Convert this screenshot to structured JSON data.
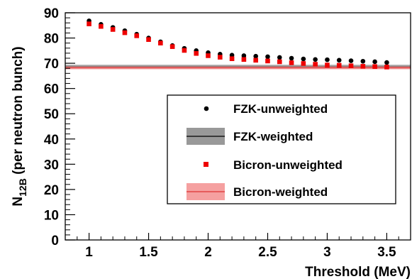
{
  "chart_data": {
    "type": "scatter",
    "xlabel": "Threshold  (MeV)",
    "ylabel": {
      "main": "N",
      "subscript": "12B",
      "suffix": " (per neutron bunch)"
    },
    "xlim": [
      0.8,
      3.7
    ],
    "ylim": [
      0,
      90
    ],
    "x_ticks": [
      "1",
      "1.5",
      "2",
      "2.5",
      "3",
      "3.5"
    ],
    "y_ticks": [
      "0",
      "10",
      "20",
      "30",
      "40",
      "50",
      "60",
      "70",
      "80",
      "90"
    ],
    "grid": false,
    "legend_position": "center-right",
    "series": [
      {
        "name": "FZK-unweighted",
        "kind": "points",
        "marker": "circle",
        "color": "#000000",
        "x": [
          1.0,
          1.1,
          1.2,
          1.3,
          1.4,
          1.5,
          1.6,
          1.7,
          1.8,
          1.9,
          2.0,
          2.1,
          2.2,
          2.3,
          2.4,
          2.5,
          2.6,
          2.7,
          2.8,
          2.9,
          3.0,
          3.1,
          3.2,
          3.3,
          3.4,
          3.5
        ],
        "y": [
          86.8,
          85.4,
          84.2,
          82.9,
          81.5,
          80.0,
          78.5,
          77.0,
          75.9,
          75.0,
          74.2,
          73.6,
          73.2,
          73.0,
          72.8,
          72.6,
          72.3,
          72.0,
          71.7,
          71.5,
          71.4,
          71.2,
          71.0,
          70.8,
          70.6,
          70.3
        ]
      },
      {
        "name": "FZK-weighted",
        "kind": "band",
        "color": "#000000",
        "band_color": "#999999",
        "value": 68.7,
        "low": 68.0,
        "high": 69.4
      },
      {
        "name": "Bicron-unweighted",
        "kind": "points",
        "marker": "square",
        "color": "#ee0000",
        "x": [
          1.0,
          1.1,
          1.2,
          1.3,
          1.4,
          1.5,
          1.6,
          1.7,
          1.8,
          1.9,
          2.0,
          2.1,
          2.2,
          2.3,
          2.4,
          2.5,
          2.6,
          2.7,
          2.8,
          2.9,
          3.0,
          3.1,
          3.2,
          3.3,
          3.4,
          3.5
        ],
        "y": [
          85.6,
          84.6,
          83.4,
          82.1,
          80.9,
          79.4,
          78.0,
          76.6,
          75.1,
          73.9,
          73.0,
          72.4,
          71.8,
          71.5,
          71.2,
          70.9,
          70.6,
          70.2,
          69.9,
          69.6,
          69.3,
          69.2,
          69.0,
          68.8,
          68.7,
          68.5
        ]
      },
      {
        "name": "Bicron-weighted",
        "kind": "band",
        "color": "#dd3333",
        "band_color": "#f5a0a0",
        "value": 68.2,
        "low": 67.6,
        "high": 68.8
      }
    ]
  }
}
